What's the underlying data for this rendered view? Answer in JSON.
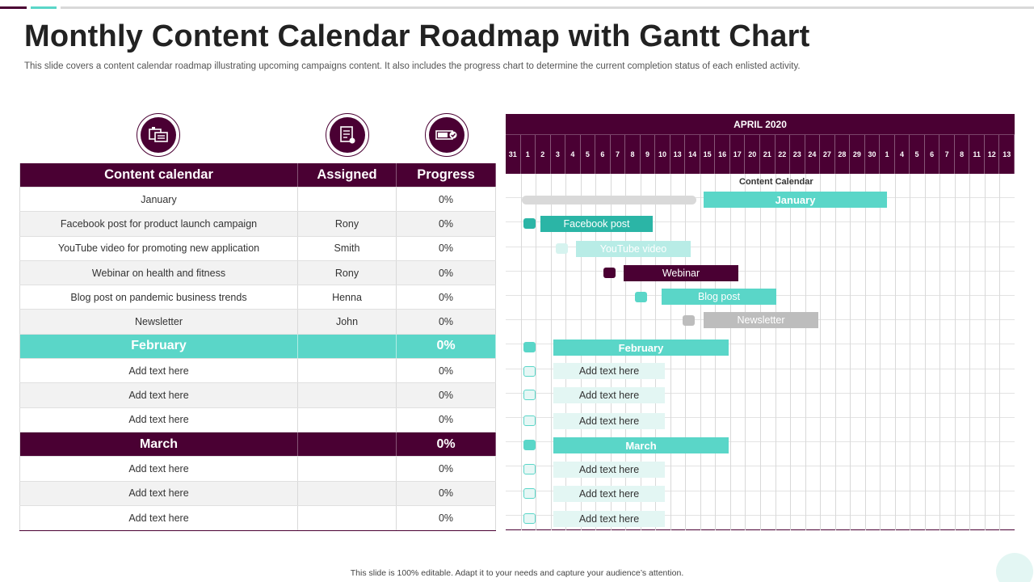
{
  "title": "Monthly Content Calendar Roadmap with Gantt Chart",
  "subtitle": "This slide covers a content calendar roadmap illustrating upcoming campaigns content. It also includes the progress chart to determine the current completion status of each enlisted activity.",
  "footer": "This slide is 100% editable. Adapt it to your needs and capture your audience’s attention.",
  "colors": {
    "primary": "#4a0033",
    "accent": "#5ad6c8",
    "light_accent": "#b8ece6",
    "grey": "#c4c4c4"
  },
  "icons": [
    "content-calendar-icon",
    "assigned-document-icon",
    "progress-battery-icon"
  ],
  "table": {
    "headers": {
      "content": "Content calendar",
      "assigned": "Assigned",
      "progress": "Progress"
    },
    "rows": [
      {
        "content": "January",
        "assigned": "",
        "progress": "0%"
      },
      {
        "content": "Facebook post for product launch campaign",
        "assigned": "Rony",
        "progress": "0%"
      },
      {
        "content": "YouTube video for promoting new application",
        "assigned": "Smith",
        "progress": "0%"
      },
      {
        "content": "Webinar on health and fitness",
        "assigned": "Rony",
        "progress": "0%"
      },
      {
        "content": "Blog post on pandemic business trends",
        "assigned": "Henna",
        "progress": "0%"
      },
      {
        "content": "Newsletter",
        "assigned": "John",
        "progress": "0%"
      },
      {
        "content": "February",
        "assigned": "",
        "progress": "0%"
      },
      {
        "content": "Add text here",
        "assigned": "",
        "progress": "0%"
      },
      {
        "content": "Add text here",
        "assigned": "",
        "progress": "0%"
      },
      {
        "content": "Add text here",
        "assigned": "",
        "progress": "0%"
      },
      {
        "content": "March",
        "assigned": "",
        "progress": "0%"
      },
      {
        "content": "Add text here",
        "assigned": "",
        "progress": "0%"
      },
      {
        "content": "Add text here",
        "assigned": "",
        "progress": "0%"
      },
      {
        "content": "Add text here",
        "assigned": "",
        "progress": "0%"
      }
    ]
  },
  "gantt": {
    "month": "APRIL 2020",
    "days": [
      "31",
      "1",
      "2",
      "3",
      "4",
      "5",
      "6",
      "7",
      "8",
      "9",
      "10",
      "13",
      "14",
      "15",
      "16",
      "17",
      "20",
      "21",
      "22",
      "23",
      "24",
      "27",
      "28",
      "29",
      "30",
      "1",
      "4",
      "5",
      "6",
      "7",
      "8",
      "11",
      "12",
      "13"
    ],
    "section_label": "Content Calendar",
    "bars": {
      "january": "January",
      "facebook": "Facebook post",
      "youtube": "YouTube video",
      "webinar": "Webinar",
      "blog": "Blog post",
      "newsletter": "Newsletter",
      "february": "February",
      "feb_1": "Add text here",
      "feb_2": "Add text here",
      "feb_3": "Add text here",
      "march": "March",
      "mar_1": "Add text here",
      "mar_2": "Add text here",
      "mar_3": "Add text here"
    }
  }
}
